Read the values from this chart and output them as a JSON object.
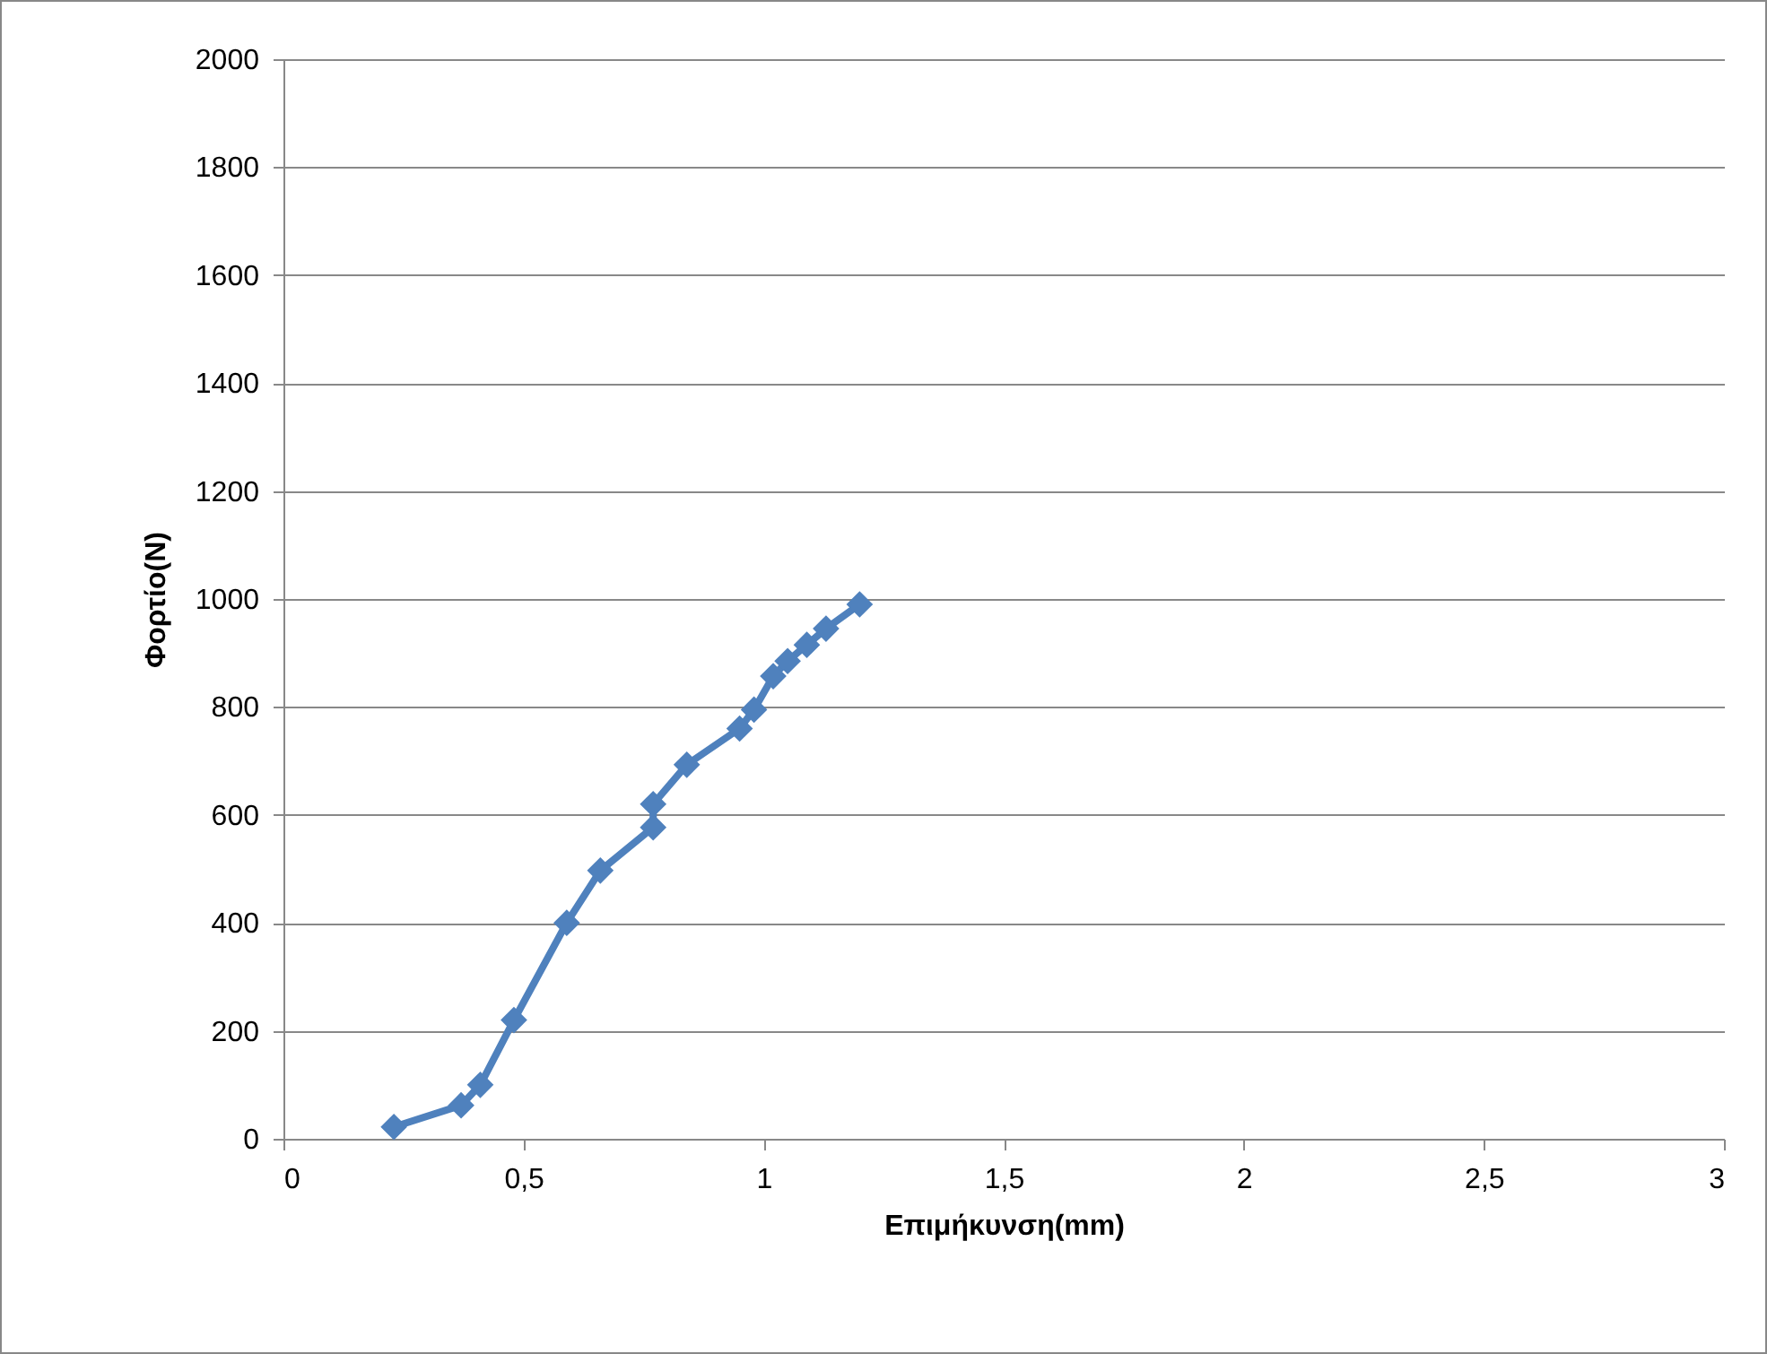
{
  "chart_data": {
    "type": "line",
    "xlabel": "Επιμήκυνση(mm)",
    "ylabel": "Φορτίο(N)",
    "x": [
      0.23,
      0.37,
      0.41,
      0.48,
      0.59,
      0.66,
      0.77,
      0.77,
      0.84,
      0.95,
      0.98,
      1.02,
      1.05,
      1.09,
      1.13,
      1.2
    ],
    "series": [
      {
        "color": "#4f81bd",
        "values": [
          22,
          62,
          100,
          220,
          400,
          497,
          577,
          620,
          693,
          760,
          795,
          857,
          885,
          915,
          945,
          990
        ]
      }
    ],
    "xlim": [
      0,
      3
    ],
    "xticks": [
      0,
      {
        "value": 0.5,
        "label": "0,5"
      },
      1,
      {
        "value": 1.5,
        "label": "1,5"
      },
      2,
      {
        "value": 2.5,
        "label": "2,5"
      },
      3
    ],
    "ylim": [
      0,
      2000
    ],
    "yticks": [
      0,
      200,
      400,
      600,
      800,
      1000,
      1200,
      1400,
      1600,
      1800,
      2000
    ],
    "grid": "y",
    "marker": "diamond",
    "line_style": "solid"
  }
}
